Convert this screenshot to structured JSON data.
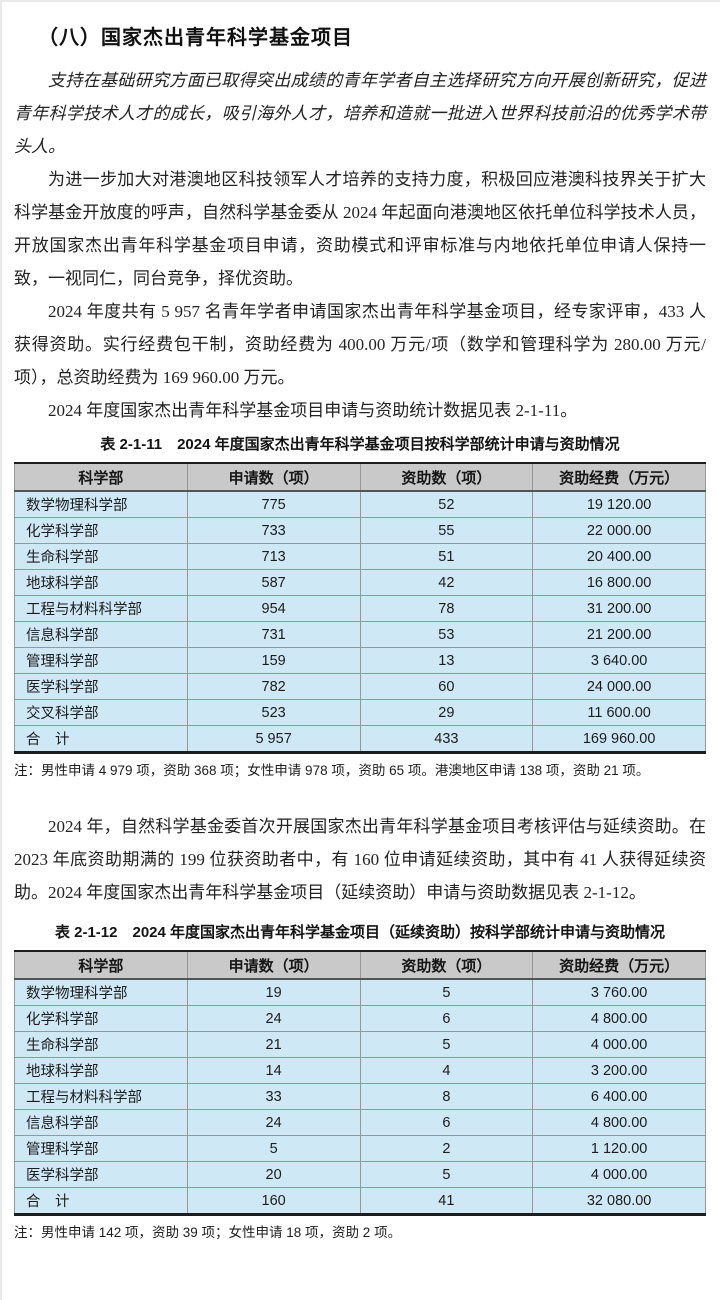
{
  "document": {
    "heading": "（八）国家杰出青年科学基金项目",
    "para_intro": "支持在基础研究方面已取得突出成绩的青年学者自主选择研究方向开展创新研究，促进青年科学技术人才的成长，吸引海外人才，培养和造就一批进入世界科技前沿的优秀学术带头人。",
    "para_hk_macao": "为进一步加大对港澳地区科技领军人才培养的支持力度，积极回应港澳科技界关于扩大科学基金开放度的呼声，自然科学基金委从 2024 年起面向港澳地区依托单位科学技术人员，开放国家杰出青年科学基金项目申请，资助模式和评审标准与内地依托单位申请人保持一致，一视同仁，同台竞争，择优资助。",
    "para_stats": "2024 年度共有 5 957 名青年学者申请国家杰出青年科学基金项目，经专家评审，433 人获得资助。实行经费包干制，资助经费为 400.00 万元/项（数学和管理科学为 280.00 万元/项），总资助经费为 169 960.00 万元。",
    "para_table1_ref": "2024 年度国家杰出青年科学基金项目申请与资助统计数据见表 2-1-11。",
    "para_renewal": "2024 年，自然科学基金委首次开展国家杰出青年科学基金项目考核评估与延续资助。在 2023 年底资助期满的 199 位获资助者中，有 160 位申请延续资助，其中有 41 人获得延续资助。2024 年度国家杰出青年科学基金项目（延续资助）申请与资助数据见表 2-1-12。"
  },
  "tables": {
    "table1": {
      "title": "表 2-1-11　2024 年度国家杰出青年科学基金项目按科学部统计申请与资助情况",
      "headers": [
        "科学部",
        "申请数（项）",
        "资助数（项）",
        "资助经费（万元）"
      ],
      "rows": [
        [
          "数学物理科学部",
          "775",
          "52",
          "19 120.00"
        ],
        [
          "化学科学部",
          "733",
          "55",
          "22 000.00"
        ],
        [
          "生命科学部",
          "713",
          "51",
          "20 400.00"
        ],
        [
          "地球科学部",
          "587",
          "42",
          "16 800.00"
        ],
        [
          "工程与材料科学部",
          "954",
          "78",
          "31 200.00"
        ],
        [
          "信息科学部",
          "731",
          "53",
          "21 200.00"
        ],
        [
          "管理科学部",
          "159",
          "13",
          "3 640.00"
        ],
        [
          "医学科学部",
          "782",
          "60",
          "24 000.00"
        ],
        [
          "交叉科学部",
          "523",
          "29",
          "11 600.00"
        ],
        [
          "合　计",
          "5 957",
          "433",
          "169 960.00"
        ]
      ],
      "note": "注：男性申请 4 979 项，资助 368 项；女性申请 978 项，资助 65 项。港澳地区申请 138 项，资助 21 项。"
    },
    "table2": {
      "title": "表 2-1-12　2024 年度国家杰出青年科学基金项目（延续资助）按科学部统计申请与资助情况",
      "headers": [
        "科学部",
        "申请数（项）",
        "资助数（项）",
        "资助经费（万元）"
      ],
      "rows": [
        [
          "数学物理科学部",
          "19",
          "5",
          "3 760.00"
        ],
        [
          "化学科学部",
          "24",
          "6",
          "4 800.00"
        ],
        [
          "生命科学部",
          "21",
          "5",
          "4 000.00"
        ],
        [
          "地球科学部",
          "14",
          "4",
          "3 200.00"
        ],
        [
          "工程与材料科学部",
          "33",
          "8",
          "6 400.00"
        ],
        [
          "信息科学部",
          "24",
          "6",
          "4 800.00"
        ],
        [
          "管理科学部",
          "5",
          "2",
          "1 120.00"
        ],
        [
          "医学科学部",
          "20",
          "5",
          "4 000.00"
        ],
        [
          "合　计",
          "160",
          "41",
          "32 080.00"
        ]
      ],
      "note": "注：男性申请 142 项，资助 39 项；女性申请 18 项，资助 2 项。"
    }
  },
  "colors": {
    "header_bg": "#c9c9c9",
    "cell_bg": "#cfe8f6",
    "grid_line": "#979797",
    "frame_line": "#1d1d1d",
    "text": "#1f1f1f"
  }
}
